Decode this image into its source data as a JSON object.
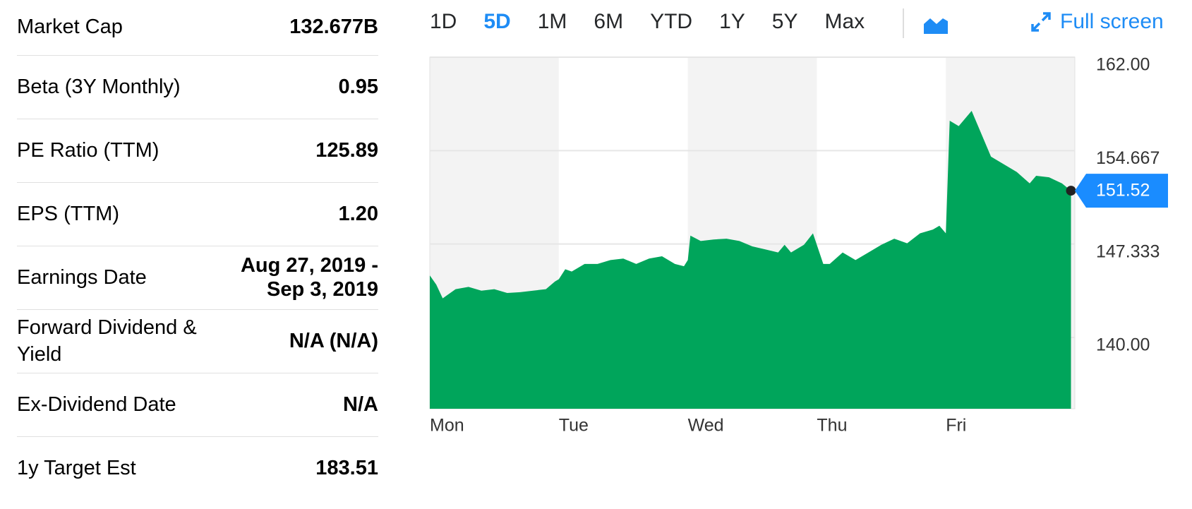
{
  "stats": {
    "rows": [
      {
        "label": "Market Cap",
        "value": "132.677B"
      },
      {
        "label": "Beta (3Y Monthly)",
        "value": "0.95"
      },
      {
        "label": "PE Ratio (TTM)",
        "value": "125.89"
      },
      {
        "label": "EPS (TTM)",
        "value": "1.20"
      },
      {
        "label": "Earnings Date",
        "value": "Aug 27, 2019 - Sep 3, 2019"
      },
      {
        "label": "Forward Dividend & Yield",
        "value": "N/A (N/A)"
      },
      {
        "label": "Ex-Dividend Date",
        "value": "N/A"
      },
      {
        "label": "1y Target Est",
        "value": "183.51"
      }
    ]
  },
  "toolbar": {
    "ranges": [
      "1D",
      "5D",
      "1M",
      "6M",
      "YTD",
      "1Y",
      "5Y",
      "Max"
    ],
    "selected": "5D",
    "full_screen": "Full screen"
  },
  "chart_data": {
    "type": "area",
    "color": "#00a55b",
    "x": [
      0,
      0.05,
      0.1,
      0.2,
      0.3,
      0.4,
      0.5,
      0.6,
      0.7,
      0.8,
      0.9,
      0.97,
      1.0,
      1.05,
      1.1,
      1.2,
      1.3,
      1.4,
      1.5,
      1.6,
      1.7,
      1.8,
      1.9,
      1.97,
      2.0,
      2.02,
      2.1,
      2.2,
      2.3,
      2.4,
      2.5,
      2.6,
      2.7,
      2.75,
      2.8,
      2.9,
      2.97,
      3.0,
      3.05,
      3.1,
      3.2,
      3.3,
      3.4,
      3.5,
      3.6,
      3.7,
      3.8,
      3.9,
      3.95,
      4.0,
      4.03,
      4.1,
      4.2,
      4.25,
      4.35,
      4.45,
      4.55,
      4.65,
      4.7,
      4.8,
      4.9,
      4.97
    ],
    "values": [
      144.87,
      144.15,
      143.07,
      143.79,
      143.97,
      143.67,
      143.79,
      143.49,
      143.55,
      143.67,
      143.79,
      144.39,
      144.57,
      145.35,
      145.17,
      145.77,
      145.77,
      146.07,
      146.19,
      145.77,
      146.19,
      146.37,
      145.77,
      145.59,
      146.07,
      147.99,
      147.57,
      147.69,
      147.75,
      147.57,
      147.15,
      146.91,
      146.67,
      147.27,
      146.67,
      147.27,
      148.17,
      147.27,
      145.77,
      145.77,
      146.67,
      146.07,
      146.67,
      147.27,
      147.75,
      147.39,
      148.17,
      148.47,
      148.77,
      148.17,
      157.01,
      156.59,
      157.79,
      156.59,
      154.19,
      153.59,
      152.99,
      152.09,
      152.69,
      152.57,
      152.09,
      151.52
    ],
    "last_value": 151.52,
    "xlim": [
      0,
      5
    ],
    "xticks": [
      {
        "value": 0,
        "label": "Mon"
      },
      {
        "value": 1,
        "label": "Tue"
      },
      {
        "value": 2,
        "label": "Wed"
      },
      {
        "value": 3,
        "label": "Thu"
      },
      {
        "value": 4,
        "label": "Fri"
      }
    ],
    "ylim": [
      134.4,
      162
    ],
    "yticks": [
      {
        "value": 162,
        "label": "162.00"
      },
      154.667,
      147.333,
      {
        "value": 140,
        "label": "140.00"
      }
    ],
    "grid": true
  }
}
